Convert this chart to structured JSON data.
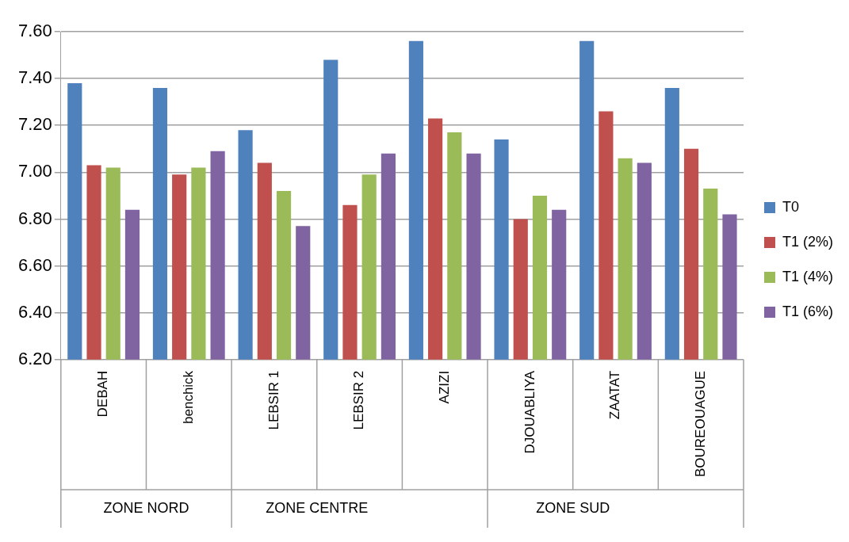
{
  "chart_data": {
    "type": "bar",
    "categories": [
      "DEBAH",
      "benchick",
      "LEBSIR 1",
      "LEBSIR 2",
      "AZIZI",
      "DJOUABLIYA",
      "ZAATAT",
      "BOUREOUAGUE"
    ],
    "series": [
      {
        "name": "T0",
        "color": "#4f81bd",
        "values": [
          7.38,
          7.36,
          7.18,
          7.48,
          7.56,
          7.14,
          7.56,
          7.36
        ]
      },
      {
        "name": "T1 (2%)",
        "color": "#c0504d",
        "values": [
          7.03,
          6.99,
          7.04,
          6.86,
          7.23,
          6.8,
          7.26,
          7.1
        ]
      },
      {
        "name": "T1 (4%)",
        "color": "#9bbb59",
        "values": [
          7.02,
          7.02,
          6.92,
          6.99,
          7.17,
          6.9,
          7.06,
          6.93
        ]
      },
      {
        "name": "T1 (6%)",
        "color": "#8064a2",
        "values": [
          6.84,
          7.09,
          6.77,
          7.08,
          7.08,
          6.84,
          7.04,
          6.82
        ]
      }
    ],
    "ylim": [
      6.2,
      7.6
    ],
    "yticks": [
      {
        "value": 6.2,
        "label": "6.20"
      },
      {
        "value": 6.4,
        "label": "6.40"
      },
      {
        "value": 6.6,
        "label": "6.60"
      },
      {
        "value": 6.8,
        "label": "6.80"
      },
      {
        "value": 7.0,
        "label": "7.00"
      },
      {
        "value": 7.2,
        "label": "7.20"
      },
      {
        "value": 7.4,
        "label": "7.40"
      },
      {
        "value": 7.6,
        "label": "7.60"
      }
    ],
    "annotations": [
      {
        "text": "ZONE NORD",
        "x": "DEBAH"
      },
      {
        "text": "ZONE CENTRE",
        "x": "LEBSIR 1"
      },
      {
        "text": "ZONE SUD",
        "x": "DJOUABLIYA"
      }
    ],
    "grid": "y",
    "legend": "right"
  }
}
